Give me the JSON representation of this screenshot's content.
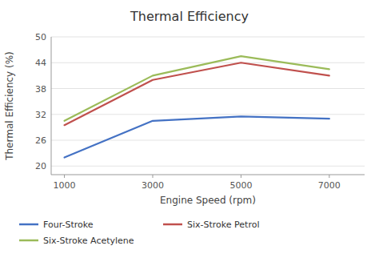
{
  "chart_data": {
    "type": "line",
    "title": "Thermal Efficiency",
    "xlabel": "Engine Speed (rpm)",
    "ylabel": "Thermal Efficiency (%)",
    "x": [
      1000,
      3000,
      5000,
      7000
    ],
    "series": [
      {
        "name": "Four-Stroke",
        "color": "#4472C4",
        "values": [
          22,
          30.5,
          31.5,
          31
        ]
      },
      {
        "name": "Six-Stroke Petrol",
        "color": "#C0504D",
        "values": [
          29.5,
          40,
          44,
          41
        ]
      },
      {
        "name": "Six-Stroke Acetylene",
        "color": "#9BBB59",
        "values": [
          30.5,
          41,
          45.5,
          42.5
        ]
      }
    ],
    "xlim": [
      700,
      7800
    ],
    "xticks": [
      1000,
      3000,
      5000,
      7000
    ],
    "ylim": [
      18,
      50
    ],
    "yticks": [
      20,
      26,
      32,
      38,
      44,
      50
    ],
    "grid": true,
    "legend": "bottom"
  }
}
